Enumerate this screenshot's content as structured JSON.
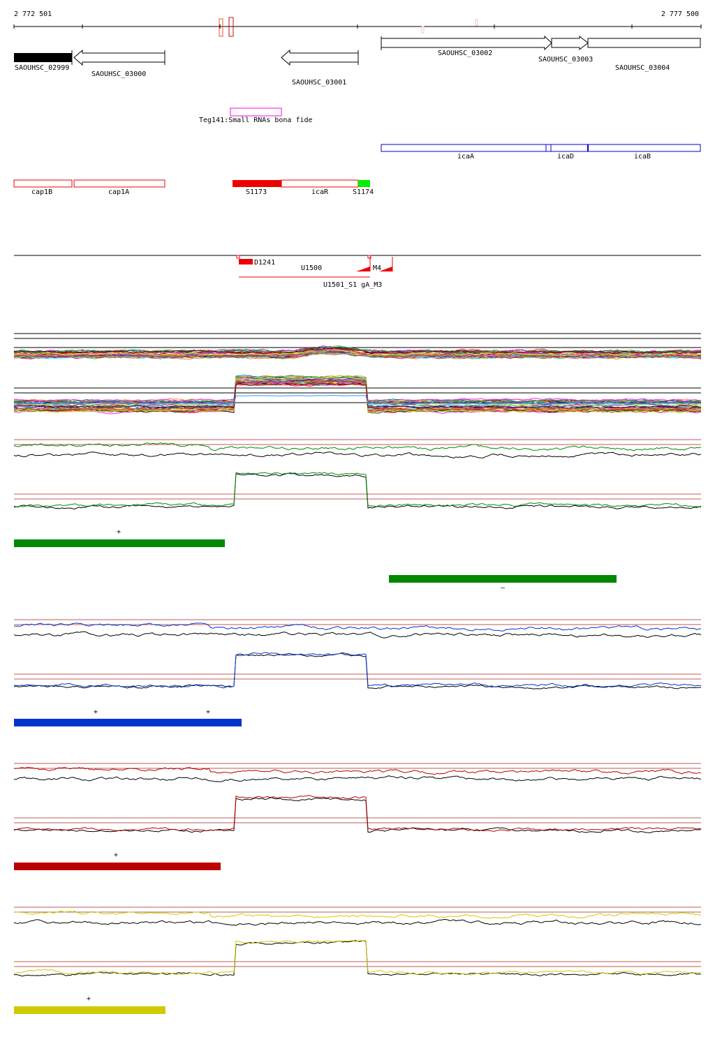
{
  "ruler": {
    "start": "2 772 501",
    "end": "2 777 500"
  },
  "genes": [
    {
      "label": "SAOUHSC_02999"
    },
    {
      "label": "SAOUHSC_03000"
    },
    {
      "label": "SAOUHSC_03001"
    },
    {
      "label": "SAOUHSC_03002"
    },
    {
      "label": "SAOUHSC_03003"
    },
    {
      "label": "SAOUHSC_03004"
    }
  ],
  "srna": {
    "label": "Teg141:Small RNAs bona fide",
    "color": "#ff00ff"
  },
  "ica": [
    {
      "label": "icaA"
    },
    {
      "label": "icaD"
    },
    {
      "label": "icaB"
    }
  ],
  "features": [
    {
      "label": "cap1B"
    },
    {
      "label": "cap1A"
    },
    {
      "label": "S1173"
    },
    {
      "label": "icaR"
    },
    {
      "label": "S1174"
    }
  ],
  "transcripts": {
    "d": "D1241",
    "u": "U1500",
    "overlap": "U1501_S1 gA_M3",
    "m4": "M4"
  },
  "conditions": [
    {
      "color": "#008800",
      "segments": [
        {
          "strand": "+"
        },
        {
          "strand": "–"
        }
      ]
    },
    {
      "color": "#0033cc",
      "segments": [
        {
          "strand": "+"
        },
        {
          "strand": "+"
        }
      ]
    },
    {
      "color": "#bb0000",
      "segments": [
        {
          "strand": "+"
        }
      ]
    },
    {
      "color": "#cccc00",
      "segments": [
        {
          "strand": "+"
        }
      ]
    }
  ]
}
